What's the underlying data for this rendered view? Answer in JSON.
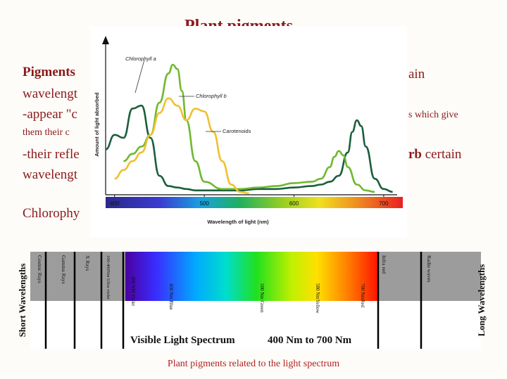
{
  "slide": {
    "title": "Plant pigments",
    "para1_a": "Pigments",
    "para1_b": "ain",
    "para2": "wavelengt",
    "para3_a": "-appear \"c",
    "para3_b": "s which give",
    "para4": "them their c",
    "para5_a": "-their refle",
    "para5_b": "rb",
    "para5_c": " certain",
    "para6": "wavelengt",
    "para7": "Chlorophy"
  },
  "chart": {
    "xlabel": "Wavelength of light (nm)",
    "ylabel": "Amount of light absorbed",
    "x_ticks": [
      "400",
      "500",
      "600",
      "700"
    ]
  },
  "chart_data": {
    "type": "line",
    "xlabel": "Wavelength of light (nm)",
    "ylabel": "Amount of light absorbed",
    "xlim": [
      390,
      715
    ],
    "ylim": [
      0,
      1
    ],
    "series": [
      {
        "name": "Chlorophyll a",
        "color": "#1b5e3b",
        "x": [
          390,
          400,
          410,
          420,
          430,
          440,
          450,
          460,
          470,
          480,
          490,
          500,
          520,
          540,
          560,
          580,
          600,
          620,
          630,
          640,
          650,
          660,
          665,
          670,
          675,
          680,
          690,
          700,
          710
        ],
        "y": [
          0.3,
          0.4,
          0.38,
          0.58,
          0.6,
          0.38,
          0.12,
          0.05,
          0.04,
          0.03,
          0.02,
          0.02,
          0.02,
          0.02,
          0.03,
          0.03,
          0.04,
          0.05,
          0.06,
          0.08,
          0.12,
          0.28,
          0.42,
          0.5,
          0.46,
          0.32,
          0.1,
          0.03,
          0.01
        ]
      },
      {
        "name": "Chlorophyll b",
        "color": "#6fb830",
        "x": [
          410,
          420,
          430,
          440,
          450,
          460,
          465,
          470,
          475,
          480,
          490,
          500,
          520,
          540,
          560,
          580,
          600,
          620,
          630,
          640,
          645,
          650,
          655,
          660,
          670,
          680,
          690
        ],
        "y": [
          0.22,
          0.27,
          0.32,
          0.4,
          0.62,
          0.82,
          0.88,
          0.85,
          0.7,
          0.5,
          0.22,
          0.08,
          0.03,
          0.03,
          0.04,
          0.05,
          0.07,
          0.08,
          0.1,
          0.18,
          0.25,
          0.29,
          0.26,
          0.18,
          0.06,
          0.02,
          0.01
        ]
      },
      {
        "name": "Carotenoids",
        "color": "#f0c030",
        "x": [
          400,
          410,
          420,
          430,
          440,
          450,
          460,
          470,
          480,
          490,
          500,
          510,
          520,
          530,
          540,
          550
        ],
        "y": [
          0.1,
          0.16,
          0.22,
          0.28,
          0.4,
          0.55,
          0.65,
          0.6,
          0.5,
          0.58,
          0.56,
          0.42,
          0.22,
          0.06,
          0.01,
          0.0
        ]
      }
    ],
    "annotations": [
      "Chlorophyll a",
      "Chlorophyll b",
      "Carotenoids"
    ]
  },
  "spectrum": {
    "left_label": "Short Wavelengths",
    "right_label": "Long Wavelengths",
    "bands": [
      "Cosmic Rays",
      "Gamma Rays",
      "X Rays",
      "100-400Nm Ultra violet",
      "Infra red",
      "Radio waves"
    ],
    "color_labels": [
      "400 NM Violet",
      "450 Nm Blue",
      "500 Nm Green",
      "580 NmYellow",
      "700 NmRed"
    ],
    "visible_title": "Visible Light Spectrum",
    "visible_range": "400 Nm to 700 Nm"
  },
  "caption": "Plant pigments related to the light spectrum"
}
